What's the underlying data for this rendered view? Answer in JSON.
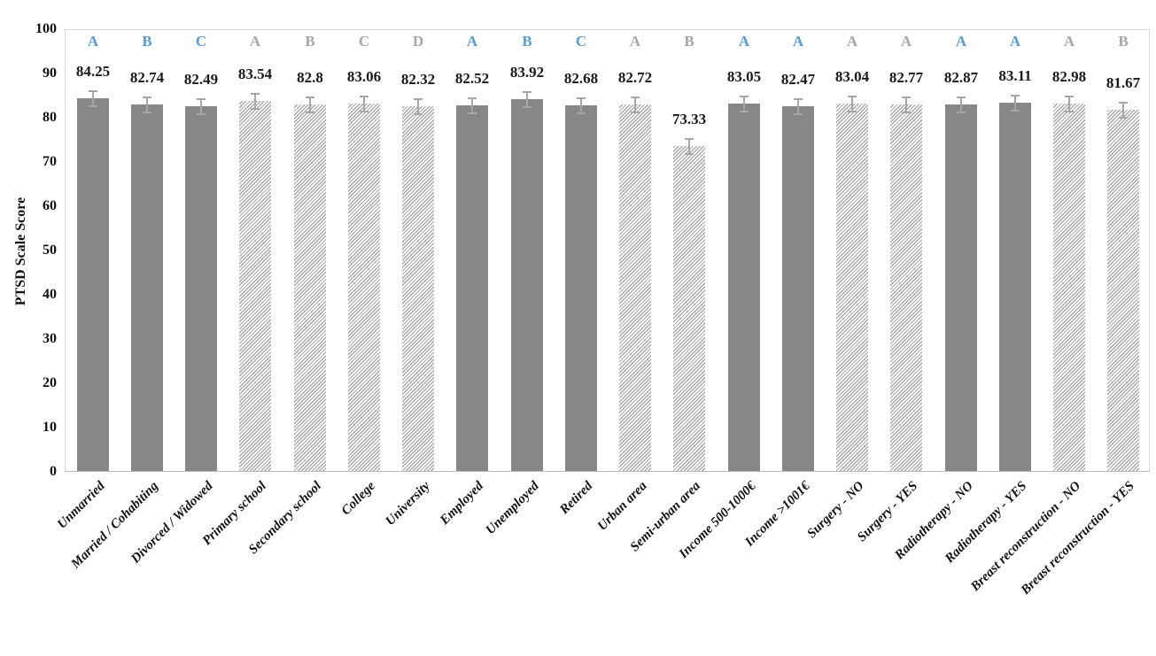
{
  "chart_data": {
    "type": "bar",
    "title": "",
    "xlabel": "",
    "ylabel": "PTSD Scale Score",
    "ylim": [
      0,
      100
    ],
    "yticks": [
      0,
      10,
      20,
      30,
      40,
      50,
      60,
      70,
      80,
      90,
      100
    ],
    "grid": false,
    "legend": null,
    "error_up": 2.2,
    "error_down": 1.5,
    "categories": [
      "Unmarried",
      "Married / Cohabiting",
      "Divorced / Widowed",
      "Primary school",
      "Secondary school",
      "College",
      "University",
      "Employed",
      "Unemployed",
      "Retired",
      "Urban area",
      "Semi-urban area",
      "Income 500-1000€",
      "Income >1001€",
      "Surgery - NO",
      "Surgery - YES",
      "Radiotherapy - NO",
      "Radiotherapy - YES",
      "Breast reconstruction - NO",
      "Breast reconstruction - YES"
    ],
    "points": [
      {
        "category": "Unmarried",
        "value": 84.25,
        "label": "84.25",
        "letter": "A",
        "letter_color": "blue",
        "fill": "solid"
      },
      {
        "category": "Married / Cohabiting",
        "value": 82.74,
        "label": "82.74",
        "letter": "B",
        "letter_color": "blue",
        "fill": "solid"
      },
      {
        "category": "Divorced / Widowed",
        "value": 82.49,
        "label": "82.49",
        "letter": "C",
        "letter_color": "blue",
        "fill": "solid"
      },
      {
        "category": "Primary school",
        "value": 83.54,
        "label": "83.54",
        "letter": "A",
        "letter_color": "gray",
        "fill": "hatch"
      },
      {
        "category": "Secondary school",
        "value": 82.8,
        "label": "82.8",
        "letter": "B",
        "letter_color": "gray",
        "fill": "hatch"
      },
      {
        "category": "College",
        "value": 83.06,
        "label": "83.06",
        "letter": "C",
        "letter_color": "gray",
        "fill": "hatch"
      },
      {
        "category": "University",
        "value": 82.32,
        "label": "82.32",
        "letter": "D",
        "letter_color": "gray",
        "fill": "hatch"
      },
      {
        "category": "Employed",
        "value": 82.52,
        "label": "82.52",
        "letter": "A",
        "letter_color": "blue",
        "fill": "solid"
      },
      {
        "category": "Unemployed",
        "value": 83.92,
        "label": "83.92",
        "letter": "B",
        "letter_color": "blue",
        "fill": "solid"
      },
      {
        "category": "Retired",
        "value": 82.68,
        "label": "82.68",
        "letter": "C",
        "letter_color": "blue",
        "fill": "solid"
      },
      {
        "category": "Urban area",
        "value": 82.72,
        "label": "82.72",
        "letter": "A",
        "letter_color": "gray",
        "fill": "hatch"
      },
      {
        "category": "Semi-urban area",
        "value": 73.33,
        "label": "73.33",
        "letter": "B",
        "letter_color": "gray",
        "fill": "hatch"
      },
      {
        "category": "Income 500-1000€",
        "value": 83.05,
        "label": "83.05",
        "letter": "A",
        "letter_color": "blue",
        "fill": "solid"
      },
      {
        "category": "Income >1001€",
        "value": 82.47,
        "label": "82.47",
        "letter": "A",
        "letter_color": "blue",
        "fill": "solid"
      },
      {
        "category": "Surgery - NO",
        "value": 83.04,
        "label": "83.04",
        "letter": "A",
        "letter_color": "gray",
        "fill": "hatch"
      },
      {
        "category": "Surgery - YES",
        "value": 82.77,
        "label": "82.77",
        "letter": "A",
        "letter_color": "gray",
        "fill": "hatch"
      },
      {
        "category": "Radiotherapy - NO",
        "value": 82.87,
        "label": "82.87",
        "letter": "A",
        "letter_color": "blue",
        "fill": "solid"
      },
      {
        "category": "Radiotherapy - YES",
        "value": 83.11,
        "label": "83.11",
        "letter": "A",
        "letter_color": "blue",
        "fill": "solid"
      },
      {
        "category": "Breast reconstruction - NO",
        "value": 82.98,
        "label": "82.98",
        "letter": "A",
        "letter_color": "gray",
        "fill": "hatch"
      },
      {
        "category": "Breast reconstruction - YES",
        "value": 81.67,
        "label": "81.67",
        "letter": "B",
        "letter_color": "gray",
        "fill": "hatch"
      }
    ]
  },
  "colors": {
    "solid_bar": "#878787",
    "hatch_stripe": "#a9a9a9",
    "letter_blue": "#5B9BD5",
    "letter_gray": "#A6A6A6",
    "error_bar": "#a6a6a6",
    "plot_border": "#d9d9d9",
    "axis_line": "#bdbdbd",
    "value_text": "#1a1a1a"
  }
}
